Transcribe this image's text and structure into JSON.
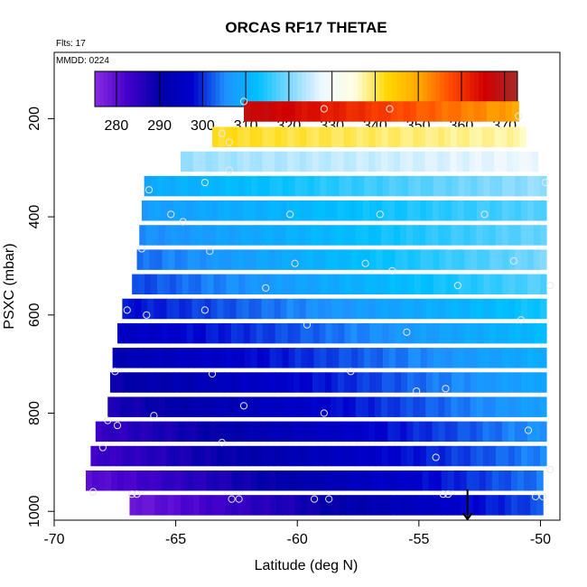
{
  "chart_data": {
    "type": "heatmap",
    "title": "ORCAS RF17 THETAE",
    "subtitle_flts": "Flts: 17",
    "subtitle_mmdd": "MMDD: 0224",
    "xlabel": "Latitude (deg N)",
    "ylabel": "PSXC (mbar)",
    "xlim": [
      -70,
      -49.2
    ],
    "ylim_reversed": [
      1018,
      65
    ],
    "x_ticks": [
      "-70",
      "-65",
      "-60",
      "-55",
      "-50"
    ],
    "y_ticks": [
      "200",
      "400",
      "600",
      "800",
      "1000"
    ],
    "colorbar": {
      "range": [
        275,
        373
      ],
      "ticks": [
        "280",
        "290",
        "300",
        "310",
        "320",
        "330",
        "340",
        "350",
        "360",
        "370"
      ],
      "colors": [
        "#8a2be2",
        "#4400cc",
        "#0000a8",
        "#0000cd",
        "#1e90ff",
        "#00bfff",
        "#7fd8ff",
        "#f0f8ff",
        "#ffffe0",
        "#ffd700",
        "#ffa500",
        "#ff4500",
        "#d00000",
        "#a52a2a"
      ]
    },
    "bands": [
      {
        "p": 185,
        "x0": -62.2,
        "x1": -50.9,
        "v0": 368,
        "v1": 350
      },
      {
        "p": 237,
        "x0": -63.5,
        "x1": -50.6,
        "v0": 342,
        "v1": 337
      },
      {
        "p": 287,
        "x0": -64.8,
        "x1": -50.1,
        "v0": 322,
        "v1": 328
      },
      {
        "p": 337,
        "x0": -66.3,
        "x1": -49.6,
        "v0": 309,
        "v1": 322
      },
      {
        "p": 387,
        "x0": -66.4,
        "x1": -49.6,
        "v0": 307,
        "v1": 318
      },
      {
        "p": 437,
        "x0": -66.5,
        "x1": -49.6,
        "v0": 305,
        "v1": 319
      },
      {
        "p": 487,
        "x0": -66.6,
        "x1": -49.6,
        "v0": 303,
        "v1": 320
      },
      {
        "p": 537,
        "x0": -66.8,
        "x1": -49.6,
        "v0": 301,
        "v1": 318
      },
      {
        "p": 587,
        "x0": -67.2,
        "x1": -49.6,
        "v0": 298,
        "v1": 314
      },
      {
        "p": 637,
        "x0": -67.4,
        "x1": -49.6,
        "v0": 295,
        "v1": 312
      },
      {
        "p": 687,
        "x0": -67.6,
        "x1": -49.6,
        "v0": 292,
        "v1": 310
      },
      {
        "p": 737,
        "x0": -67.7,
        "x1": -49.6,
        "v0": 289,
        "v1": 309
      },
      {
        "p": 787,
        "x0": -67.8,
        "x1": -49.6,
        "v0": 287,
        "v1": 308
      },
      {
        "p": 837,
        "x0": -68.3,
        "x1": -49.7,
        "v0": 284,
        "v1": 306
      },
      {
        "p": 887,
        "x0": -68.5,
        "x1": -49.6,
        "v0": 283,
        "v1": 305
      },
      {
        "p": 937,
        "x0": -68.7,
        "x1": -49.9,
        "v0": 280,
        "v1": 304
      },
      {
        "p": 987,
        "x0": -66.9,
        "x1": -49.9,
        "v0": 278,
        "v1": 302
      }
    ],
    "markers": [
      [
        -62.2,
        165
      ],
      [
        -58.9,
        180
      ],
      [
        -56.2,
        180
      ],
      [
        -50.9,
        195
      ],
      [
        -63.1,
        230
      ],
      [
        -62.8,
        248
      ],
      [
        -62.8,
        305
      ],
      [
        -66.1,
        345
      ],
      [
        -63.8,
        330
      ],
      [
        -49.8,
        330
      ],
      [
        -65.2,
        395
      ],
      [
        -64.7,
        410
      ],
      [
        -60.3,
        395
      ],
      [
        -56.6,
        395
      ],
      [
        -52.3,
        395
      ],
      [
        -66.4,
        465
      ],
      [
        -63.6,
        470
      ],
      [
        -60.1,
        495
      ],
      [
        -57.2,
        495
      ],
      [
        -56.1,
        510
      ],
      [
        -51.1,
        490
      ],
      [
        -61.3,
        545
      ],
      [
        -53.4,
        540
      ],
      [
        -49.6,
        540
      ],
      [
        -67.0,
        590
      ],
      [
        -66.2,
        600
      ],
      [
        -63.8,
        590
      ],
      [
        -59.6,
        620
      ],
      [
        -55.5,
        635
      ],
      [
        -50.8,
        610
      ],
      [
        -67.5,
        715
      ],
      [
        -63.5,
        720
      ],
      [
        -57.8,
        715
      ],
      [
        -55.1,
        755
      ],
      [
        -53.9,
        750
      ],
      [
        -62.2,
        785
      ],
      [
        -67.8,
        815
      ],
      [
        -67.4,
        825
      ],
      [
        -65.9,
        805
      ],
      [
        -58.9,
        800
      ],
      [
        -50.5,
        835
      ],
      [
        -68.0,
        870
      ],
      [
        -63.1,
        860
      ],
      [
        -54.3,
        890
      ],
      [
        -49.6,
        915
      ],
      [
        -68.4,
        960
      ],
      [
        -66.8,
        965
      ],
      [
        -66.6,
        965
      ],
      [
        -62.7,
        975
      ],
      [
        -62.4,
        975
      ],
      [
        -59.3,
        975
      ],
      [
        -58.7,
        975
      ],
      [
        -54.0,
        965
      ],
      [
        -53.8,
        965
      ],
      [
        -50.2,
        970
      ],
      [
        -49.9,
        970
      ]
    ],
    "arrow": {
      "x": -53.0,
      "p_from": 955,
      "p_to": 1018
    }
  }
}
